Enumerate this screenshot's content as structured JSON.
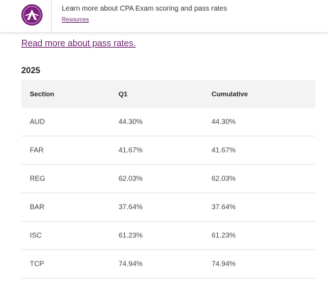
{
  "header": {
    "text": "Learn more about CPA Exam scoring and pass rates",
    "link": "Resources",
    "logo_color": "#7b1f7b"
  },
  "read_more": "Read more about pass rates.",
  "year": "2025",
  "table": {
    "columns": [
      "Section",
      "Q1",
      "Cumulative"
    ],
    "rows": [
      [
        "AUD",
        "44.30%",
        "44.30%"
      ],
      [
        "FAR",
        "41.67%",
        "41.67%"
      ],
      [
        "REG",
        "62.03%",
        "62.03%"
      ],
      [
        "BAR",
        "37.64%",
        "37.64%"
      ],
      [
        "ISC",
        "61.23%",
        "61.23%"
      ],
      [
        "TCP",
        "74.94%",
        "74.94%"
      ]
    ]
  },
  "colors": {
    "link": "#6b1f6b",
    "header_bg": "#f3f3f3",
    "row_border": "#e4e4e4"
  }
}
